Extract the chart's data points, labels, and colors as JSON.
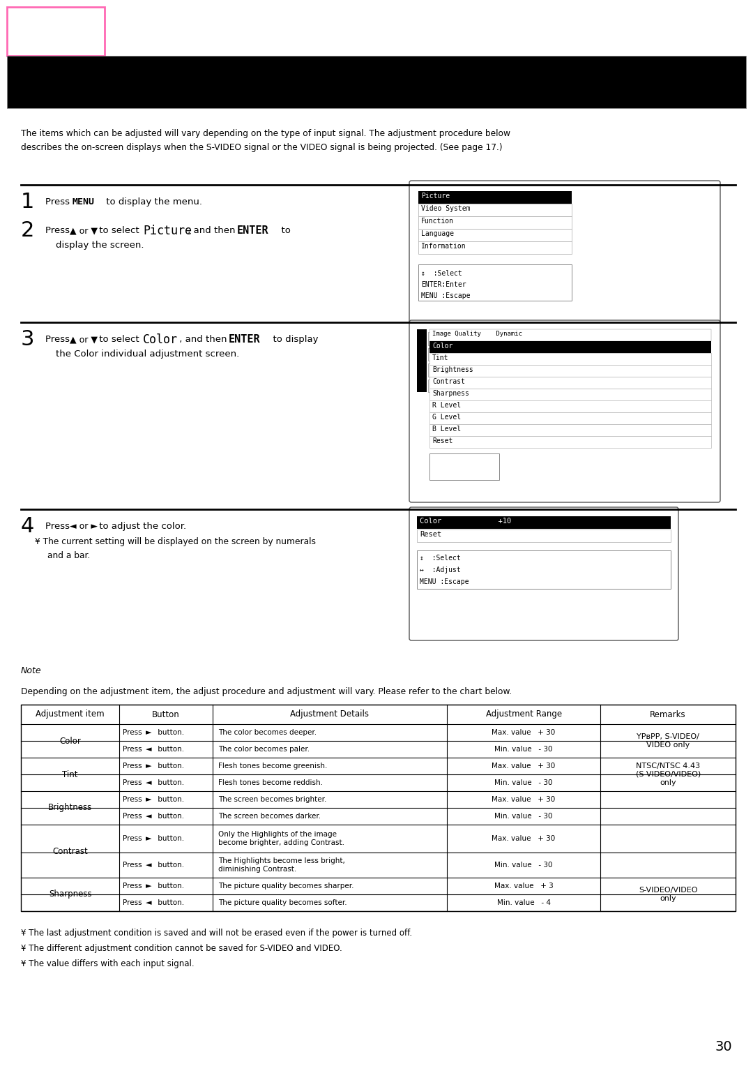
{
  "page_number": "30",
  "bg_color": "#ffffff",
  "intro_text_line1": "The items which can be adjusted will vary depending on the type of input signal. The adjustment procedure below",
  "intro_text_line2": "describes the on-screen displays when the S-VIDEO signal or the VIDEO signal is being projected. (See page 17.)",
  "step1_num": "1",
  "step2_num": "2",
  "step3_num": "3",
  "step4_num": "4",
  "note_text": "Note",
  "chart_intro": "Depending on the adjustment item, the adjust procedure and adjustment will vary. Please refer to the chart below.",
  "footer1": "¥ The last adjustment condition is saved and will not be erased even if the power is turned off.",
  "footer2": "¥ The different adjustment condition cannot be saved for S-VIDEO and VIDEO.",
  "footer3": "¥ The value differs with each input signal.",
  "table_headers": [
    "Adjustment item",
    "Button",
    "Adjustment Details",
    "Adjustment Range",
    "Remarks"
  ],
  "osd1_items": [
    "Picture",
    "Video System",
    "Function",
    "Language",
    "Information"
  ],
  "osd1_hint": [
    "↕  :Select",
    "ENTER:Enter",
    "MENU :Escape"
  ],
  "osd2_header": "Image Quality    Dynamic",
  "osd2_items": [
    "Color",
    "Tint",
    "Brightness",
    "Contrast",
    "Sharpness",
    "R Level",
    "G Level",
    "B Level",
    "Reset"
  ],
  "osd3_line1": "Color             +10",
  "osd3_line2": "Reset",
  "osd3_hint": [
    "↕  :Select",
    "↔  :Adjust",
    "MENU :Escape"
  ],
  "YPbPR_remark": "YPвPР, S-VIDEO/\nVIDEO only",
  "tint_remark": "NTSC/NTSC 4.43\n(S-VIDEO/VIDEO)\nonly",
  "sharp_remark": "S-VIDEO/VIDEO\nonly"
}
